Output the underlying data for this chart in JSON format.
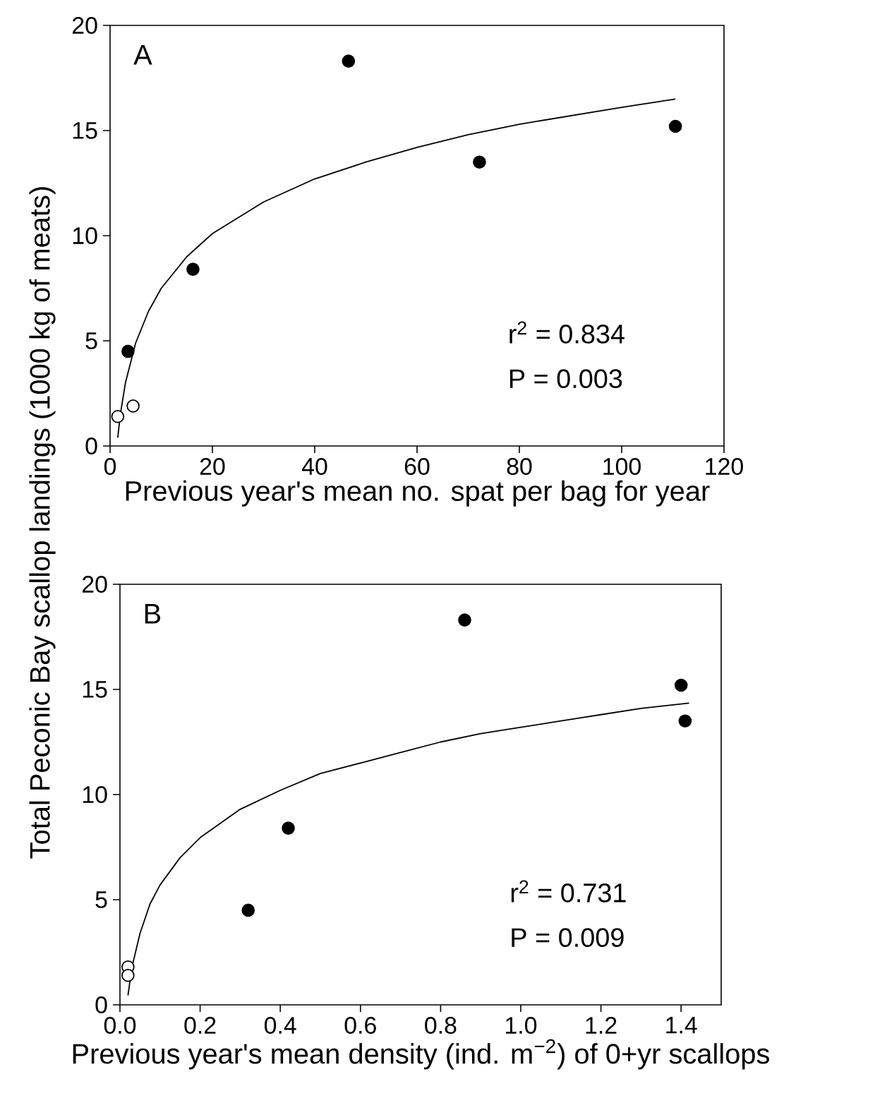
{
  "chart_data": [
    {
      "type": "scatter",
      "ylabel": "Total Peconic Bay scallop landings (1000 kg of meats)",
      "xlabel": "Previous year's mean no. spat per bag for year",
      "annotations": [
        "A",
        "r$^{2}$ = 0.834",
        "P = 0.003"
      ],
      "xlim": [
        0,
        120
      ],
      "xticks": [
        0,
        20,
        40,
        60,
        80,
        100,
        120
      ],
      "ylim": [
        0,
        20
      ],
      "yticks": [
        0,
        5,
        10,
        15,
        20
      ],
      "grid": false,
      "series": [
        {
          "marker": "circle",
          "color": "#000000",
          "x": [
            3.5,
            16.2,
            46.6,
            72.2,
            110.5
          ],
          "values": [
            4.5,
            8.4,
            18.3,
            13.5,
            15.2
          ]
        },
        {
          "marker": "circle",
          "color": "#ffffff",
          "x": [
            1.5,
            4.5
          ],
          "values": [
            1.4,
            1.9
          ]
        },
        {
          "type": "line",
          "color": "#000000",
          "x": [
            1.5,
            2,
            3,
            5,
            7.5,
            10,
            15,
            20,
            30,
            40,
            50,
            60,
            70,
            80,
            90,
            100,
            110.5
          ],
          "values": [
            0.4,
            1.5,
            3.0,
            4.9,
            6.4,
            7.5,
            9.0,
            10.1,
            11.6,
            12.7,
            13.5,
            14.2,
            14.8,
            15.3,
            15.7,
            16.1,
            16.5
          ]
        }
      ]
    },
    {
      "type": "scatter",
      "xlabel": "Previous year's mean density (ind. m$^{−2}$) of 0+yr scallops",
      "annotations": [
        "B",
        "r$^{2}$ = 0.731",
        "P = 0.009"
      ],
      "xlim": [
        0,
        1.5
      ],
      "xticks": [
        {
          "value": 0,
          "label": "0.0"
        },
        {
          "value": 0.2,
          "label": "0.2"
        },
        {
          "value": 0.4,
          "label": "0.4"
        },
        {
          "value": 0.6,
          "label": "0.6"
        },
        {
          "value": 0.8,
          "label": "0.8"
        },
        {
          "value": 1.0,
          "label": "1.0"
        },
        {
          "value": 1.2,
          "label": "1.2"
        },
        {
          "value": 1.4,
          "label": "1.4"
        }
      ],
      "ylim": [
        0,
        20
      ],
      "yticks": [
        0,
        5,
        10,
        15,
        20
      ],
      "grid": false,
      "series": [
        {
          "marker": "circle",
          "color": "#000000",
          "x": [
            0.32,
            0.42,
            0.86,
            1.4,
            1.41
          ],
          "values": [
            4.5,
            8.4,
            18.3,
            15.2,
            13.5
          ]
        },
        {
          "marker": "circle",
          "color": "#ffffff",
          "x": [
            0.02,
            0.02
          ],
          "values": [
            1.8,
            1.4
          ]
        },
        {
          "type": "line",
          "color": "#000000",
          "x": [
            0.02,
            0.03,
            0.05,
            0.075,
            0.1,
            0.15,
            0.2,
            0.3,
            0.4,
            0.5,
            0.6,
            0.7,
            0.8,
            0.9,
            1.0,
            1.1,
            1.2,
            1.3,
            1.42
          ],
          "values": [
            0.45,
            1.8,
            3.4,
            4.8,
            5.7,
            7.0,
            7.95,
            9.3,
            10.2,
            11.0,
            11.5,
            12.0,
            12.5,
            12.9,
            13.2,
            13.5,
            13.8,
            14.1,
            14.35
          ]
        }
      ]
    }
  ]
}
